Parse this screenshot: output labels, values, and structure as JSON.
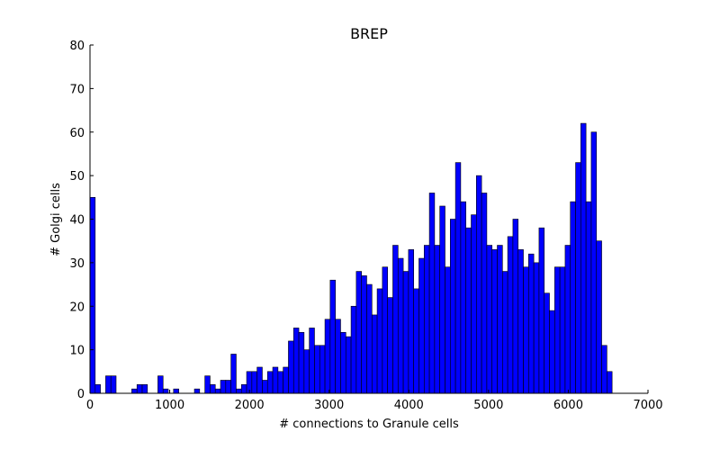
{
  "chart_data": {
    "type": "bar",
    "title": "BREP",
    "xlabel": "# connections to Granule cells",
    "ylabel": "# Golgi cells",
    "xlim": [
      0,
      7000
    ],
    "ylim": [
      0,
      80
    ],
    "xticks": [
      0,
      1000,
      2000,
      3000,
      4000,
      5000,
      6000,
      7000
    ],
    "yticks": [
      0,
      10,
      20,
      30,
      40,
      50,
      60,
      70,
      80
    ],
    "bar_color": "#0000ff",
    "bin_width": 65.5,
    "bin_start": 0,
    "values": [
      45,
      2,
      0,
      4,
      4,
      0,
      0,
      0,
      1,
      2,
      2,
      0,
      0,
      4,
      1,
      0,
      1,
      0,
      0,
      0,
      1,
      0,
      4,
      2,
      1,
      3,
      3,
      9,
      1,
      2,
      5,
      5,
      6,
      3,
      5,
      6,
      5,
      6,
      12,
      15,
      14,
      10,
      15,
      11,
      11,
      17,
      26,
      17,
      14,
      13,
      20,
      28,
      27,
      25,
      18,
      24,
      29,
      22,
      34,
      31,
      28,
      33,
      24,
      31,
      34,
      46,
      34,
      43,
      29,
      40,
      53,
      44,
      38,
      41,
      50,
      46,
      34,
      33,
      34,
      28,
      36,
      40,
      33,
      29,
      32,
      30,
      38,
      23,
      19,
      29,
      29,
      34,
      44,
      53,
      62,
      44,
      60,
      35,
      11,
      5
    ]
  }
}
